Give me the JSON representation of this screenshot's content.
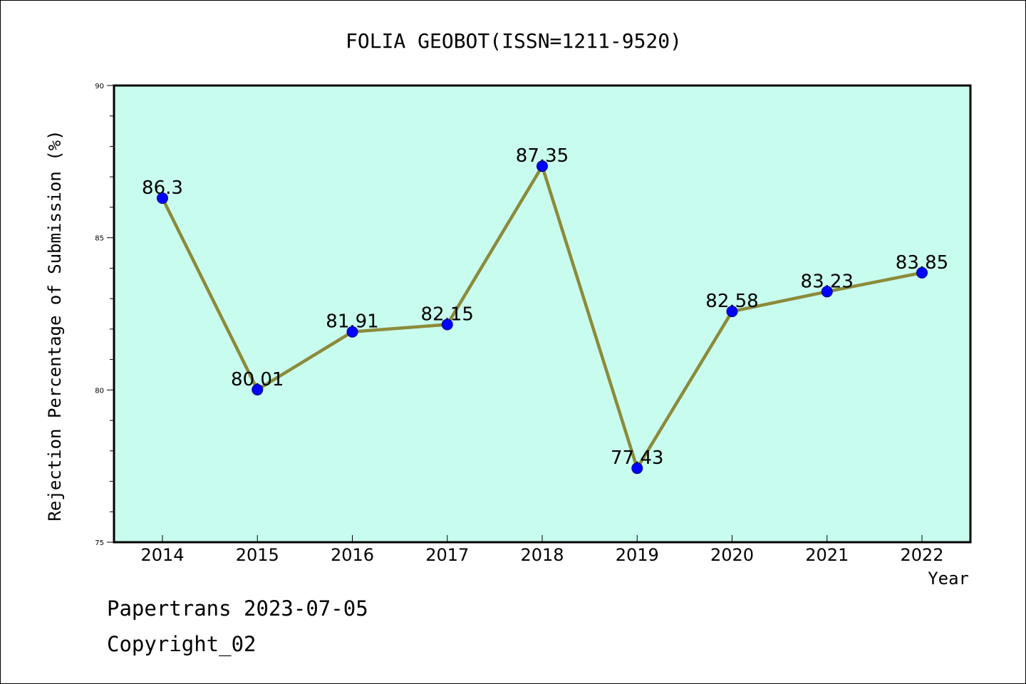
{
  "chart_data": {
    "type": "line",
    "title": "FOLIA GEOBOT(ISSN=1211-9520)",
    "xlabel": "Year",
    "ylabel": "Rejection Percentage of Submission (%)",
    "categories": [
      "2014",
      "2015",
      "2016",
      "2017",
      "2018",
      "2019",
      "2020",
      "2021",
      "2022"
    ],
    "values": [
      86.3,
      80.01,
      81.91,
      82.15,
      87.35,
      77.43,
      82.58,
      83.23,
      83.85
    ],
    "value_labels": [
      "86.3",
      "80.01",
      "81.91",
      "82.15",
      "87.35",
      "77.43",
      "82.58",
      "83.23",
      "83.85"
    ],
    "ylim": [
      75,
      90
    ],
    "y_ticks": [
      "75",
      "80",
      "85",
      "90"
    ],
    "grid": false,
    "legend": "none",
    "colors": {
      "plot_background": "#c8fcee",
      "line": "#8c8a3a",
      "marker": "#0000ff"
    }
  },
  "footer": {
    "line1": "Papertrans 2023-07-05",
    "line2": "Copyright_02"
  }
}
